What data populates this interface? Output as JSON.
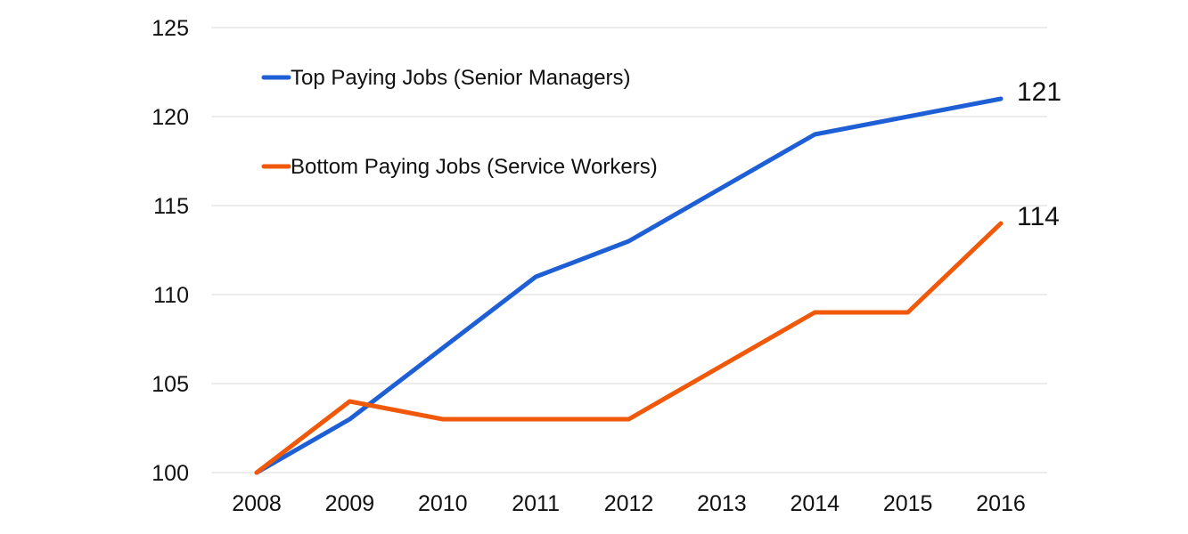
{
  "chart_data": {
    "type": "line",
    "title": "",
    "xlabel": "",
    "ylabel": "",
    "categories": [
      "2008",
      "2009",
      "2010",
      "2011",
      "2012",
      "2013",
      "2014",
      "2015",
      "2016"
    ],
    "ylim": [
      100,
      125
    ],
    "yticks": [
      100,
      105,
      110,
      115,
      120,
      125
    ],
    "grid": true,
    "legend_position": "top-left",
    "series": [
      {
        "name": "Top Paying Jobs",
        "detail": "(Senior Managers)",
        "color": "#1f5fd6",
        "values": [
          100,
          103,
          107,
          111,
          113,
          116,
          119,
          120,
          121
        ],
        "end_label": "121"
      },
      {
        "name": "Bottom Paying Jobs",
        "detail": "(Service Workers)",
        "color": "#f0580a",
        "values": [
          100,
          104,
          103,
          103,
          103,
          106,
          109,
          109,
          114
        ],
        "end_label": "114"
      }
    ]
  }
}
